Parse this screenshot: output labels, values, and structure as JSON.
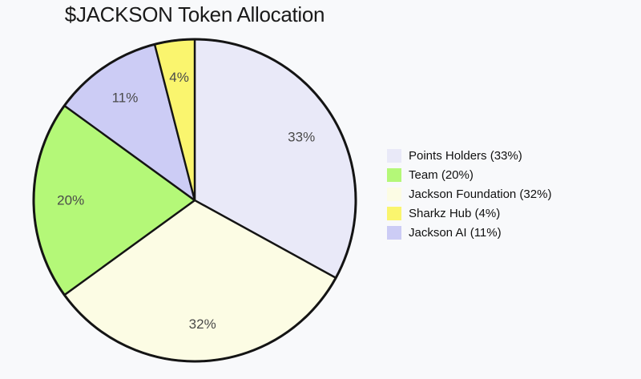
{
  "page": {
    "background": "#f8f9fb"
  },
  "chart_data": {
    "type": "pie",
    "title": "$JACKSON Token Allocation",
    "slices": [
      {
        "label": "Points Holders",
        "value": 33,
        "pct_label": "33%",
        "legend_label": "Points Holders (33%)",
        "color": "#e9e9f8"
      },
      {
        "label": "Team",
        "value": 20,
        "pct_label": "20%",
        "legend_label": "Team (20%)",
        "color": "#b4f878"
      },
      {
        "label": "Jackson Foundation",
        "value": 32,
        "pct_label": "32%",
        "legend_label": "Jackson Foundation (32%)",
        "color": "#fcfce4"
      },
      {
        "label": "Sharkz Hub",
        "value": 4,
        "pct_label": "4%",
        "legend_label": "Sharkz Hub (4%)",
        "color": "#faf56e"
      },
      {
        "label": "Jackson AI",
        "value": 11,
        "pct_label": "11%",
        "legend_label": "Jackson AI (11%)",
        "color": "#ccccf5"
      }
    ],
    "layout": {
      "start_angle_deg": 90,
      "direction": "clockwise",
      "sort": "value_desc",
      "label_distance": 0.77,
      "legend_position": "right",
      "grid": false,
      "edge_color": "#141414",
      "edge_width": 2.4,
      "label_color": "#4a4a4a",
      "title_color": "#1a1a1a",
      "legend_text_color": "#111111",
      "background_color": "#f8f9fb"
    }
  }
}
